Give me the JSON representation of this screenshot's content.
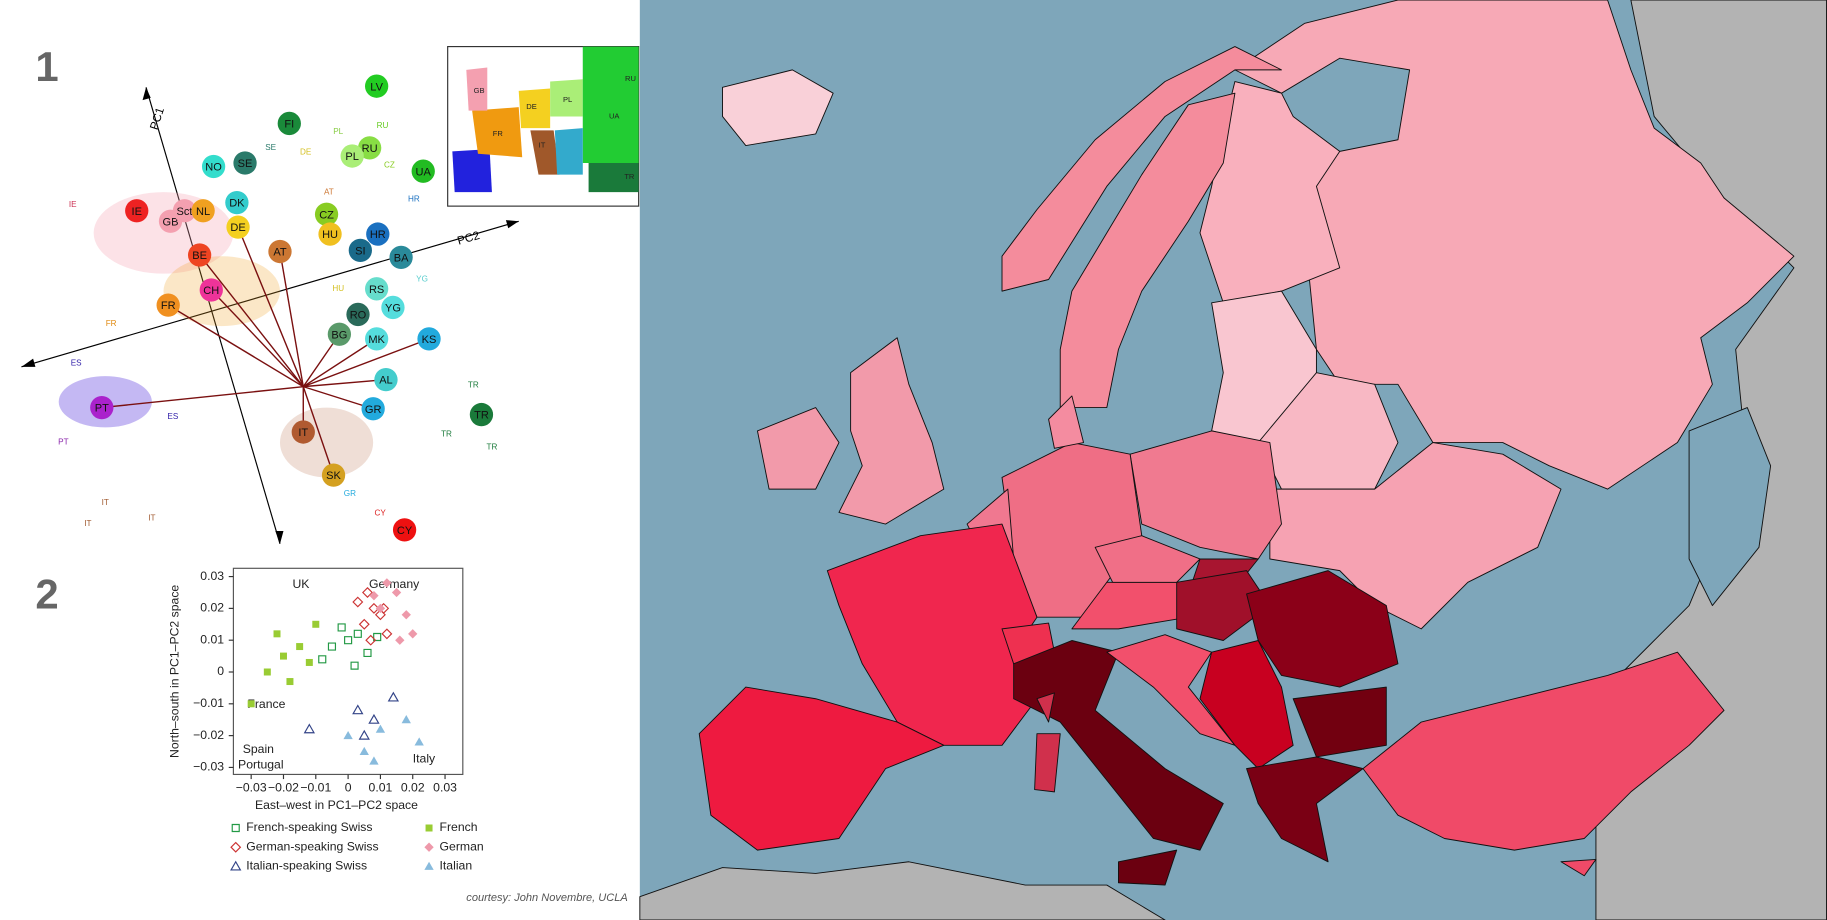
{
  "panel_labels": [
    "1",
    "2"
  ],
  "pca": {
    "axes": [
      "PC1",
      "PC2"
    ],
    "clusters": [
      "LV",
      "FI",
      "RU",
      "PL",
      "UA",
      "NO",
      "SE",
      "IE",
      "GB",
      "Sct",
      "NL",
      "DK",
      "DE",
      "CZ",
      "HU",
      "HR",
      "SI",
      "BA",
      "AT",
      "BE",
      "CH",
      "FR",
      "RS",
      "YG",
      "RO",
      "BG",
      "MK",
      "KS",
      "AL",
      "GR",
      "TR",
      "PT",
      "IT",
      "SK",
      "CY"
    ],
    "small_labels": [
      "IE",
      "FR",
      "ES",
      "ES",
      "PT",
      "IT",
      "IT",
      "IT",
      "TR",
      "TR",
      "TR",
      "CY",
      "SE",
      "DE",
      "PL",
      "RU",
      "CZ",
      "HR",
      "HU",
      "YG",
      "GR",
      "AT"
    ],
    "inset_labels": [
      "GB",
      "DE",
      "PL",
      "FR",
      "RU",
      "UA",
      "TR",
      "IT"
    ]
  },
  "chart_data": {
    "type": "scatter",
    "x_label": "East–west in PC1–PC2 space",
    "y_label": "North–south in PC1–PC2 space",
    "xlim": [
      -0.0355,
      0.0355
    ],
    "ylim": [
      -0.0322,
      0.0326
    ],
    "xticks": [
      {
        "value": -0.03,
        "label": "−0.03"
      },
      {
        "value": -0.02,
        "label": "−0.02"
      },
      {
        "value": -0.01,
        "label": "−0.01"
      },
      0,
      0.01,
      0.02,
      0.03
    ],
    "yticks": [
      {
        "value": -0.03,
        "label": "−0.03"
      },
      {
        "value": -0.02,
        "label": "−0.02"
      },
      {
        "value": -0.01,
        "label": "−0.01"
      },
      0,
      0.01,
      0.02,
      0.03
    ],
    "annotations": [
      "UK",
      "Germany",
      "France",
      "Spain",
      "Portugal",
      "Italy"
    ],
    "series": [
      {
        "name": "French-speaking Swiss",
        "color": "#229944",
        "marker": "square-open",
        "x": [
          -0.005,
          0,
          0.003,
          0.006,
          -0.008,
          0.002,
          -0.002,
          0.009
        ],
        "values": [
          0.008,
          0.01,
          0.012,
          0.006,
          0.004,
          0.002,
          0.014,
          0.011
        ]
      },
      {
        "name": "German-speaking Swiss",
        "color": "#cc3333",
        "marker": "diamond-open",
        "x": [
          0.005,
          0.008,
          0.01,
          0.012,
          0.003,
          0.007,
          0.011,
          0.006
        ],
        "values": [
          0.015,
          0.02,
          0.018,
          0.012,
          0.022,
          0.01,
          0.02,
          0.025
        ]
      },
      {
        "name": "Italian-speaking Swiss",
        "color": "#334488",
        "marker": "triangle-open",
        "x": [
          0.003,
          0.008,
          -0.012,
          0.005,
          0.014
        ],
        "values": [
          -0.012,
          -0.015,
          -0.018,
          -0.02,
          -0.008
        ]
      },
      {
        "name": "French",
        "color": "#99cc33",
        "marker": "square",
        "x": [
          -0.03,
          -0.025,
          -0.02,
          -0.015,
          -0.012,
          -0.018,
          -0.022,
          -0.01
        ],
        "values": [
          -0.01,
          0,
          0.005,
          0.008,
          0.003,
          -0.003,
          0.012,
          0.015
        ]
      },
      {
        "name": "German",
        "color": "#ee99aa",
        "marker": "diamond",
        "x": [
          0.01,
          0.015,
          0.018,
          0.012,
          0.02,
          0.008,
          0.016
        ],
        "values": [
          0.02,
          0.025,
          0.018,
          0.028,
          0.012,
          0.024,
          0.01
        ]
      },
      {
        "name": "Italian",
        "color": "#88bbdd",
        "marker": "triangle",
        "x": [
          0,
          0.005,
          0.01,
          0.018,
          0.022,
          0.008
        ],
        "values": [
          -0.02,
          -0.025,
          -0.018,
          -0.015,
          -0.022,
          -0.028
        ]
      }
    ]
  },
  "credit": "courtesy: John Novembre, UCLA"
}
